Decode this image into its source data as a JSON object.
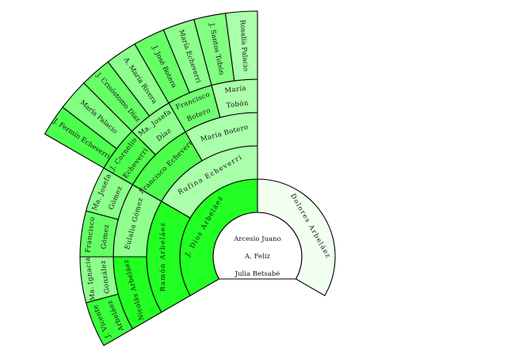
{
  "center": {
    "lines": [
      "Arcesio   Juano",
      "A. Feliz",
      "Julia   Betsabé"
    ],
    "color": "#ffffff"
  },
  "tree": {
    "father": {
      "lines": [
        "J. Dios Arbeláez"
      ],
      "color": "#22ff22",
      "father": {
        "lines": [
          "Ramón Arbeláez"
        ],
        "color": "#22ff22",
        "father": {
          "lines": [
            "Nicolás Arbeláez"
          ],
          "color": "#22ff22",
          "father": {
            "lines": [
              "J. Vicente",
              "Arbeláez"
            ],
            "color": "#38ff38"
          },
          "mother": {
            "lines": [
              "Ma. Ignacia",
              "González"
            ],
            "color": "#8cff8c"
          }
        },
        "mother": {
          "lines": [
            "Eulalia Gómez"
          ],
          "color": "#90ff90",
          "father": {
            "lines": [
              "Francisco",
              "Gómez"
            ],
            "color": "#66ff66"
          },
          "mother": {
            "lines": [
              "Ma. Josefa",
              "Gómez"
            ],
            "color": "#8cff8c"
          }
        }
      },
      "mother": {
        "lines": [
          "Rufina Echeverri"
        ],
        "color": "#aaffaa",
        "father": {
          "lines": [
            "Francisco Echeverri"
          ],
          "color": "#4cff4c",
          "father": {
            "lines": [
              "J. Cornelio",
              "Echeverri"
            ],
            "color": "#4cff4c",
            "father": {
              "lines": [
                "J. Fermín Echeverri"
              ],
              "color": "#4cff4c"
            },
            "mother": {
              "lines": [
                "María Palacio"
              ],
              "color": "#80ff80"
            }
          },
          "mother": {
            "lines": [
              "Ma. Josefa",
              "Díaz"
            ],
            "color": "#8cff8c",
            "father": {
              "lines": [
                "J. Crisóstomo Díaz"
              ],
              "color": "#66ff66"
            },
            "mother": {
              "lines": [
                "A. María Rivera"
              ],
              "color": "#8cff8c"
            }
          }
        },
        "mother": {
          "lines": [
            "María Botero"
          ],
          "color": "#aaffaa",
          "father": {
            "lines": [
              "Francisco",
              "Botero"
            ],
            "color": "#70ff70",
            "father": {
              "lines": [
                "J. José Botero"
              ],
              "color": "#66ff66"
            },
            "mother": {
              "lines": [
                "María Echeverri"
              ],
              "color": "#8cff8c"
            }
          },
          "mother": {
            "lines": [
              "María",
              "Tobón"
            ],
            "color": "#aaffaa",
            "father": {
              "lines": [
                "J. Santos Tobón"
              ],
              "color": "#80ff80"
            },
            "mother": {
              "lines": [
                "Rosalía Palacio"
              ],
              "color": "#aaffaa"
            }
          }
        }
      }
    },
    "mother": {
      "lines": [
        "Dolores Arbeláez"
      ],
      "color": "#f0fff0"
    }
  }
}
